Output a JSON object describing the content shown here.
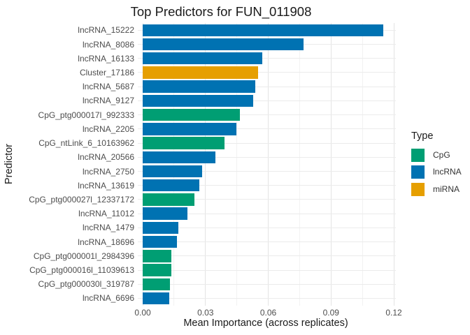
{
  "chart_data": {
    "type": "bar",
    "orientation": "horizontal",
    "title": "Top Predictors for FUN_011908",
    "xlabel": "Mean Importance (across replicates)",
    "ylabel": "Predictor",
    "xlim": [
      0,
      0.121
    ],
    "x_tick_labels": [
      "0.00",
      "0.03",
      "0.06",
      "0.09",
      "0.12"
    ],
    "x_tick_values": [
      0,
      0.03,
      0.06,
      0.09,
      0.12
    ],
    "x_minor_tick_values": [
      0.015,
      0.045,
      0.075,
      0.105
    ],
    "grid": true,
    "categories": [
      "lncRNA_15222",
      "lncRNA_8086",
      "lncRNA_16133",
      "Cluster_17186",
      "lncRNA_5687",
      "lncRNA_9127",
      "CpG_ptg000017l_992333",
      "lncRNA_2205",
      "CpG_ntLink_6_10163962",
      "lncRNA_20566",
      "lncRNA_2750",
      "lncRNA_13619",
      "CpG_ptg000027l_12337172",
      "lncRNA_11012",
      "lncRNA_1479",
      "lncRNA_18696",
      "CpG_ptg000001l_2984396",
      "CpG_ptg000016l_11039613",
      "CpG_ptg000030l_319787",
      "lncRNA_6696"
    ],
    "values": [
      0.1151,
      0.077,
      0.057,
      0.0552,
      0.0537,
      0.0528,
      0.0465,
      0.0449,
      0.0392,
      0.0349,
      0.0285,
      0.0272,
      0.0248,
      0.0214,
      0.0171,
      0.0164,
      0.0137,
      0.0137,
      0.013,
      0.0126
    ],
    "bar_types": [
      "lncRNA",
      "lncRNA",
      "lncRNA",
      "miRNA",
      "lncRNA",
      "lncRNA",
      "CpG",
      "lncRNA",
      "CpG",
      "lncRNA",
      "lncRNA",
      "lncRNA",
      "CpG",
      "lncRNA",
      "lncRNA",
      "lncRNA",
      "CpG",
      "CpG",
      "CpG",
      "lncRNA"
    ],
    "legend": {
      "title": "Type",
      "position": "right",
      "entries": [
        "CpG",
        "lncRNA",
        "miRNA"
      ]
    },
    "colors": {
      "CpG": "#009E73",
      "lncRNA": "#0072B2",
      "miRNA": "#E69F00"
    }
  }
}
